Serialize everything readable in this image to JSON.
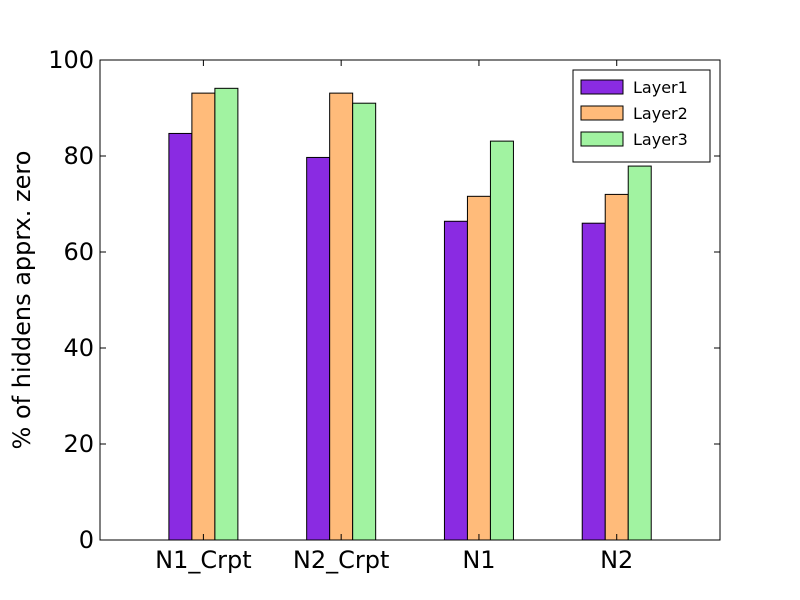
{
  "chart_data": {
    "type": "bar",
    "categories": [
      "N1_Crpt",
      "N2_Crpt",
      "N1",
      "N2"
    ],
    "series": [
      {
        "name": "Layer1",
        "color": "#8a2be2",
        "values": [
          84.7,
          79.7,
          66.4,
          66.0
        ]
      },
      {
        "name": "Layer2",
        "color": "#ffbb7a",
        "values": [
          93.1,
          93.1,
          71.6,
          72.0
        ]
      },
      {
        "name": "Layer3",
        "color": "#a1f3a1",
        "values": [
          94.1,
          91.0,
          83.1,
          77.9
        ]
      }
    ],
    "title": "",
    "xlabel": "",
    "ylabel": "% of hiddens apprx. zero",
    "ylim": [
      0,
      100
    ],
    "yticks": [
      "0",
      "20",
      "40",
      "60",
      "80",
      "100"
    ],
    "grid": false,
    "legend_position": "top-right"
  }
}
